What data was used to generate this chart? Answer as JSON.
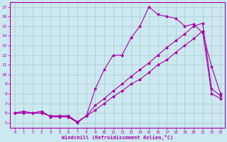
{
  "xlabel": "Windchill (Refroidissement éolien,°C)",
  "background_color": "#cce8f0",
  "grid_color": "#aacccc",
  "line_color": "#aa00aa",
  "ylim": [
    4.5,
    17.5
  ],
  "xlim": [
    -0.5,
    23.5
  ],
  "yticks": [
    5,
    6,
    7,
    8,
    9,
    10,
    11,
    12,
    13,
    14,
    15,
    16,
    17
  ],
  "xticks": [
    0,
    1,
    2,
    3,
    4,
    5,
    6,
    7,
    8,
    9,
    10,
    11,
    12,
    13,
    14,
    15,
    16,
    17,
    18,
    19,
    20,
    21,
    22,
    23
  ],
  "line1_x": [
    0,
    1,
    2,
    3,
    4,
    5,
    6,
    7,
    8,
    9,
    10,
    11,
    12,
    13,
    14,
    15,
    16,
    17,
    18,
    19,
    20,
    21,
    22,
    23
  ],
  "line1_y": [
    6.0,
    6.2,
    6.0,
    6.2,
    5.6,
    5.6,
    5.6,
    5.0,
    5.7,
    8.5,
    10.5,
    12.0,
    12.0,
    13.8,
    15.0,
    17.0,
    16.2,
    16.0,
    15.8,
    15.0,
    15.2,
    14.3,
    10.8,
    8.0
  ],
  "line2_x": [
    0,
    1,
    2,
    3,
    4,
    5,
    6,
    7,
    8,
    9,
    10,
    11,
    12,
    13,
    14,
    15,
    16,
    17,
    18,
    19,
    20,
    21,
    22,
    23
  ],
  "line2_y": [
    6.0,
    6.0,
    6.0,
    6.0,
    5.7,
    5.7,
    5.7,
    5.1,
    5.7,
    6.8,
    7.5,
    8.3,
    9.0,
    9.8,
    10.5,
    11.2,
    12.0,
    12.8,
    13.5,
    14.2,
    15.0,
    15.3,
    8.5,
    7.8
  ],
  "line3_x": [
    0,
    1,
    2,
    3,
    4,
    5,
    6,
    7,
    8,
    9,
    10,
    11,
    12,
    13,
    14,
    15,
    16,
    17,
    18,
    19,
    20,
    21,
    22,
    23
  ],
  "line3_y": [
    6.0,
    6.0,
    6.0,
    6.0,
    5.7,
    5.7,
    5.7,
    5.1,
    5.7,
    6.3,
    7.0,
    7.7,
    8.3,
    9.0,
    9.5,
    10.2,
    11.0,
    11.5,
    12.3,
    13.0,
    13.7,
    14.5,
    8.0,
    7.5
  ]
}
